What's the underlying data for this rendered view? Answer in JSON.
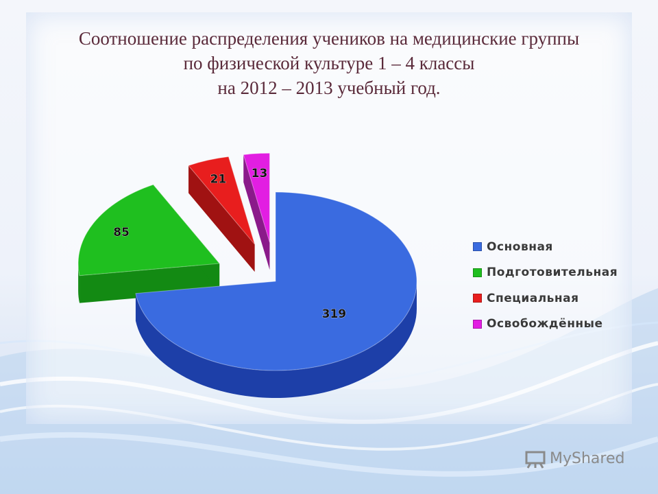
{
  "title": {
    "line1": "Соотношение распределения учеников на медицинские группы",
    "line2": "по физической культуре 1 – 4 классы",
    "line3": "на 2012 – 2013 учебный год."
  },
  "chart_data": {
    "type": "pie",
    "categories": [
      "Основная",
      "Подготовительная",
      "Специальная",
      "Освобождённые"
    ],
    "values": [
      319,
      85,
      21,
      13
    ],
    "colors": [
      "#3a6be0",
      "#1fbf1f",
      "#e81e1e",
      "#e21ee2"
    ],
    "side_colors": [
      "#1d3fa8",
      "#138a13",
      "#a01212",
      "#8a1a8a"
    ],
    "title": "",
    "legend_position": "right",
    "style": "3d-exploded"
  },
  "watermark": {
    "text": "MyShared",
    "icon": "presentation-board-icon"
  }
}
